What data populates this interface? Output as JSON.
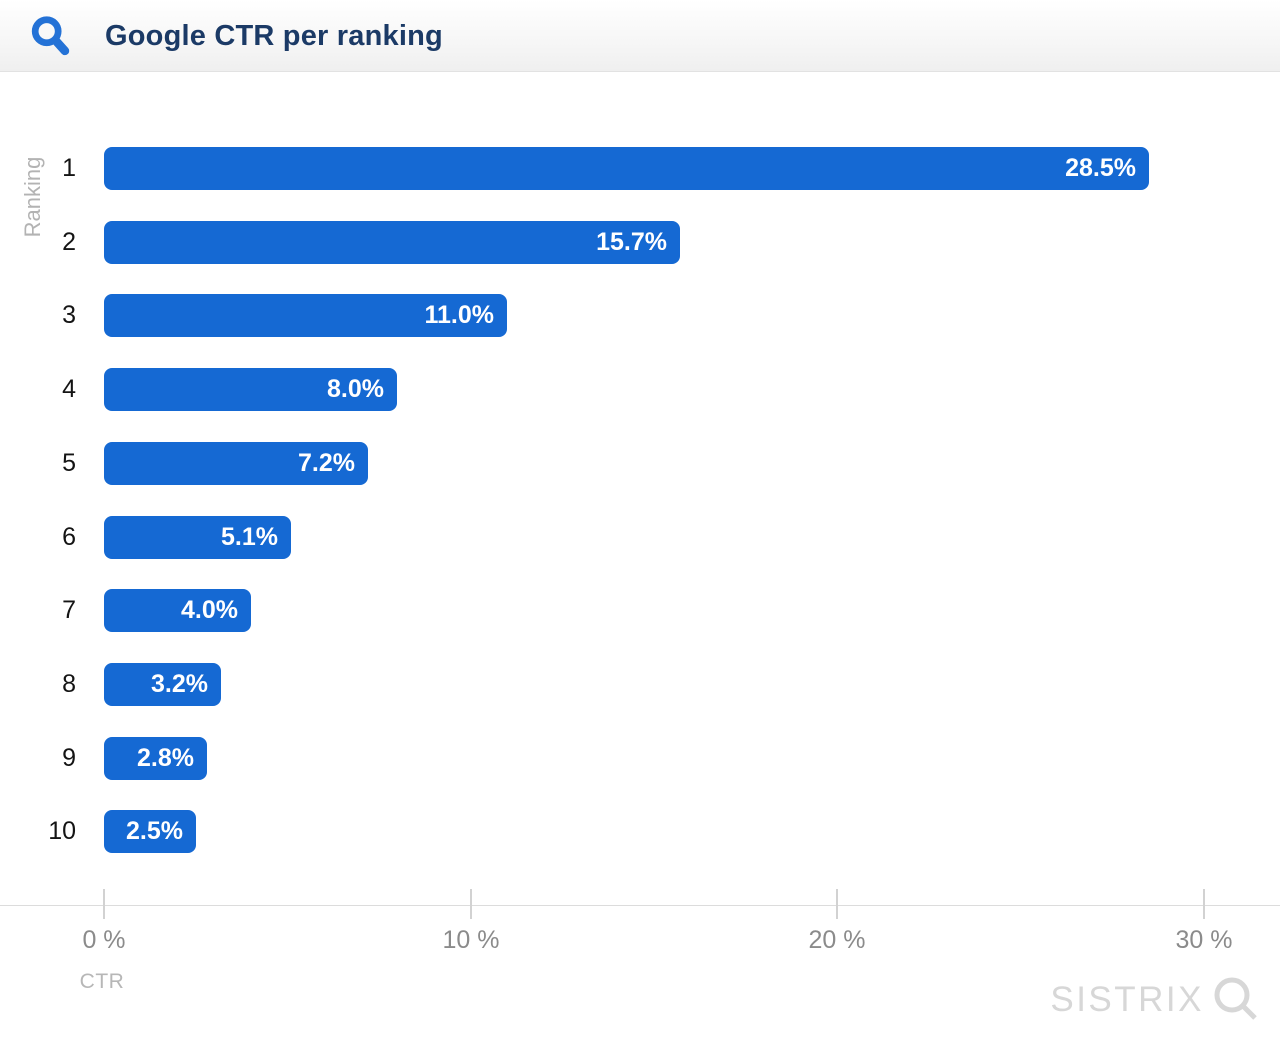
{
  "header": {
    "title": "Google CTR per ranking"
  },
  "chart_data": {
    "type": "bar",
    "orientation": "horizontal",
    "title": "Google CTR per ranking",
    "categories": [
      "1",
      "2",
      "3",
      "4",
      "5",
      "6",
      "7",
      "8",
      "9",
      "10"
    ],
    "values": [
      28.5,
      15.7,
      11.0,
      8.0,
      7.2,
      5.1,
      4.0,
      3.2,
      2.8,
      2.5
    ],
    "bar_labels": [
      "28.5%",
      "15.7%",
      "11.0%",
      "8.0%",
      "7.2%",
      "5.1%",
      "4.0%",
      "3.2%",
      "2.8%",
      "2.5%"
    ],
    "xlabel": "CTR",
    "ylabel": "Ranking",
    "xlim": [
      0,
      32.1
    ],
    "x_ticks": [
      {
        "value": 0,
        "label": "0 %"
      },
      {
        "value": 10,
        "label": "10 %"
      },
      {
        "value": 20,
        "label": "20 %"
      },
      {
        "value": 30,
        "label": "30 %"
      }
    ],
    "grid": false,
    "legend": "none",
    "bar_color": "#1569d3",
    "bar_label_color": "#ffffff"
  },
  "footer": {
    "brand": "SISTRIX"
  },
  "colors": {
    "bar_blue": "#1569d3",
    "icon_blue": "#2472d6",
    "title_navy": "#1b3a66",
    "logo_gray": "#d7d7d7"
  }
}
